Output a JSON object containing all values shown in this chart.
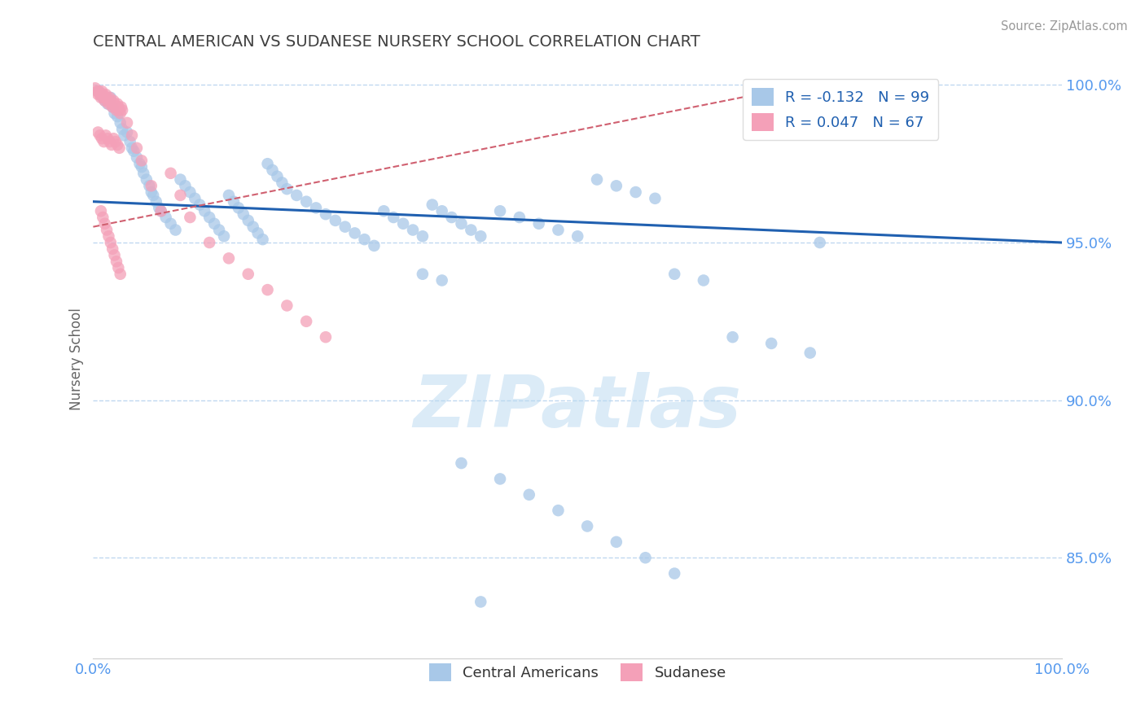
{
  "title": "CENTRAL AMERICAN VS SUDANESE NURSERY SCHOOL CORRELATION CHART",
  "source": "Source: ZipAtlas.com",
  "ylabel": "Nursery School",
  "xlim": [
    0,
    1
  ],
  "ylim": [
    0.818,
    1.008
  ],
  "yticks": [
    0.85,
    0.9,
    0.95,
    1.0
  ],
  "ytick_labels": [
    "85.0%",
    "90.0%",
    "95.0%",
    "100.0%"
  ],
  "xtick_labels": [
    "0.0%",
    "100.0%"
  ],
  "legend_R1": "R = -0.132",
  "legend_N1": "N = 99",
  "legend_R2": "R = 0.047",
  "legend_N2": "N = 67",
  "color_blue": "#a8c8e8",
  "color_pink": "#f4a0b8",
  "color_blue_line": "#2060b0",
  "color_pink_line": "#d06070",
  "color_axis_text": "#5599ee",
  "color_grid": "#c0d8f0",
  "watermark_color": "#b8d8f0",
  "blue_scatter_x": [
    0.005,
    0.008,
    0.01,
    0.012,
    0.015,
    0.018,
    0.02,
    0.022,
    0.025,
    0.028,
    0.03,
    0.032,
    0.035,
    0.038,
    0.04,
    0.042,
    0.045,
    0.048,
    0.05,
    0.052,
    0.055,
    0.058,
    0.06,
    0.062,
    0.065,
    0.068,
    0.07,
    0.075,
    0.08,
    0.085,
    0.09,
    0.095,
    0.1,
    0.105,
    0.11,
    0.115,
    0.12,
    0.125,
    0.13,
    0.135,
    0.14,
    0.145,
    0.15,
    0.155,
    0.16,
    0.165,
    0.17,
    0.175,
    0.18,
    0.185,
    0.19,
    0.195,
    0.2,
    0.21,
    0.22,
    0.23,
    0.24,
    0.25,
    0.26,
    0.27,
    0.28,
    0.29,
    0.3,
    0.31,
    0.32,
    0.33,
    0.34,
    0.35,
    0.36,
    0.37,
    0.38,
    0.39,
    0.4,
    0.42,
    0.44,
    0.46,
    0.48,
    0.5,
    0.52,
    0.54,
    0.56,
    0.58,
    0.6,
    0.63,
    0.66,
    0.7,
    0.74,
    0.75,
    0.38,
    0.42,
    0.45,
    0.48,
    0.51,
    0.54,
    0.57,
    0.6,
    0.34,
    0.36,
    0.4
  ],
  "blue_scatter_y": [
    0.998,
    0.997,
    0.996,
    0.995,
    0.994,
    0.996,
    0.993,
    0.991,
    0.99,
    0.988,
    0.986,
    0.984,
    0.985,
    0.982,
    0.98,
    0.979,
    0.977,
    0.975,
    0.974,
    0.972,
    0.97,
    0.968,
    0.966,
    0.965,
    0.963,
    0.961,
    0.96,
    0.958,
    0.956,
    0.954,
    0.97,
    0.968,
    0.966,
    0.964,
    0.962,
    0.96,
    0.958,
    0.956,
    0.954,
    0.952,
    0.965,
    0.963,
    0.961,
    0.959,
    0.957,
    0.955,
    0.953,
    0.951,
    0.975,
    0.973,
    0.971,
    0.969,
    0.967,
    0.965,
    0.963,
    0.961,
    0.959,
    0.957,
    0.955,
    0.953,
    0.951,
    0.949,
    0.96,
    0.958,
    0.956,
    0.954,
    0.952,
    0.962,
    0.96,
    0.958,
    0.956,
    0.954,
    0.952,
    0.96,
    0.958,
    0.956,
    0.954,
    0.952,
    0.97,
    0.968,
    0.966,
    0.964,
    0.94,
    0.938,
    0.92,
    0.918,
    0.915,
    0.95,
    0.88,
    0.875,
    0.87,
    0.865,
    0.86,
    0.855,
    0.85,
    0.845,
    0.94,
    0.938,
    0.836
  ],
  "pink_scatter_x": [
    0.002,
    0.004,
    0.005,
    0.006,
    0.007,
    0.008,
    0.009,
    0.01,
    0.011,
    0.012,
    0.013,
    0.014,
    0.015,
    0.016,
    0.017,
    0.018,
    0.019,
    0.02,
    0.021,
    0.022,
    0.023,
    0.024,
    0.025,
    0.026,
    0.027,
    0.028,
    0.029,
    0.03,
    0.035,
    0.04,
    0.045,
    0.05,
    0.06,
    0.07,
    0.08,
    0.09,
    0.1,
    0.12,
    0.14,
    0.16,
    0.18,
    0.2,
    0.22,
    0.24,
    0.005,
    0.007,
    0.009,
    0.011,
    0.013,
    0.015,
    0.017,
    0.019,
    0.021,
    0.023,
    0.025,
    0.027,
    0.008,
    0.01,
    0.012,
    0.014,
    0.016,
    0.018,
    0.02,
    0.022,
    0.024,
    0.026,
    0.028
  ],
  "pink_scatter_y": [
    0.999,
    0.998,
    0.997,
    0.998,
    0.997,
    0.996,
    0.998,
    0.997,
    0.996,
    0.995,
    0.997,
    0.996,
    0.995,
    0.994,
    0.996,
    0.995,
    0.994,
    0.993,
    0.995,
    0.994,
    0.993,
    0.992,
    0.994,
    0.993,
    0.992,
    0.991,
    0.993,
    0.992,
    0.988,
    0.984,
    0.98,
    0.976,
    0.968,
    0.96,
    0.972,
    0.965,
    0.958,
    0.95,
    0.945,
    0.94,
    0.935,
    0.93,
    0.925,
    0.92,
    0.985,
    0.984,
    0.983,
    0.982,
    0.984,
    0.983,
    0.982,
    0.981,
    0.983,
    0.982,
    0.981,
    0.98,
    0.96,
    0.958,
    0.956,
    0.954,
    0.952,
    0.95,
    0.948,
    0.946,
    0.944,
    0.942,
    0.94
  ]
}
